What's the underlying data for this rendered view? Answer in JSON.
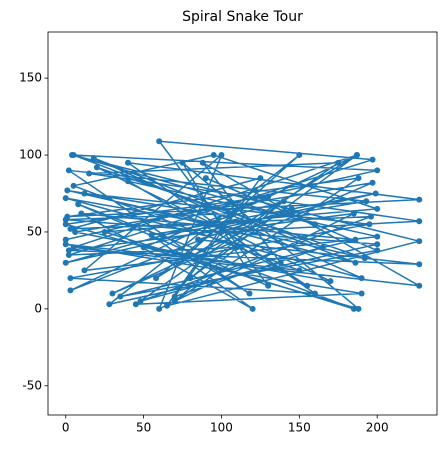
{
  "chart_data": {
    "type": "line",
    "title": "Spiral Snake Tour",
    "color": "#1f77b4",
    "markers": true,
    "x": [
      0,
      200,
      5,
      186,
      12,
      195,
      3,
      160,
      40,
      227,
      1,
      188,
      70,
      110,
      2,
      197,
      60,
      130,
      8,
      185,
      25,
      200,
      95,
      5,
      150,
      0,
      190,
      45,
      175,
      15,
      227,
      100,
      3,
      187,
      80,
      140,
      0,
      199,
      55,
      120,
      10,
      186,
      35,
      200,
      90,
      160,
      4,
      227,
      65,
      105,
      1,
      192,
      20,
      170,
      50,
      130,
      0,
      188,
      75,
      115,
      6,
      197,
      30,
      145,
      85,
      227,
      2,
      185,
      60,
      100,
      12,
      200,
      40,
      155,
      95,
      0,
      190,
      18,
      165,
      70,
      125,
      3,
      196,
      48,
      138,
      88,
      227,
      5,
      187,
      58,
      108,
      0,
      200,
      28,
      150,
      78,
      118,
      2,
      193,
      62
    ],
    "values": [
      45,
      90,
      100,
      30,
      75,
      55,
      20,
      10,
      95,
      71,
      60,
      85,
      5,
      40,
      35,
      97,
      109,
      15,
      68,
      0,
      50,
      65,
      100,
      80,
      25,
      42,
      10,
      3,
      95,
      88,
      57,
      50,
      12,
      100,
      20,
      70,
      30,
      75,
      48,
      0,
      62,
      45,
      8,
      38,
      85,
      55,
      100,
      44,
      2,
      60,
      77,
      33,
      92,
      18,
      40,
      73,
      55,
      0,
      95,
      28,
      50,
      82,
      10,
      65,
      45,
      29,
      38,
      62,
      0,
      100,
      25,
      47,
      83,
      15,
      55,
      72,
      20,
      98,
      40,
      8,
      85,
      52,
      60,
      5,
      30,
      95,
      15,
      40,
      100,
      20,
      62,
      58,
      42,
      3,
      100,
      35,
      10,
      90,
      70,
      48
    ],
    "xlim": [
      -11.4,
      238.4
    ],
    "ylim": [
      -69,
      180
    ],
    "xticks": [
      0,
      50,
      100,
      150,
      200
    ],
    "yticks": [
      -50,
      0,
      50,
      100,
      150
    ]
  }
}
